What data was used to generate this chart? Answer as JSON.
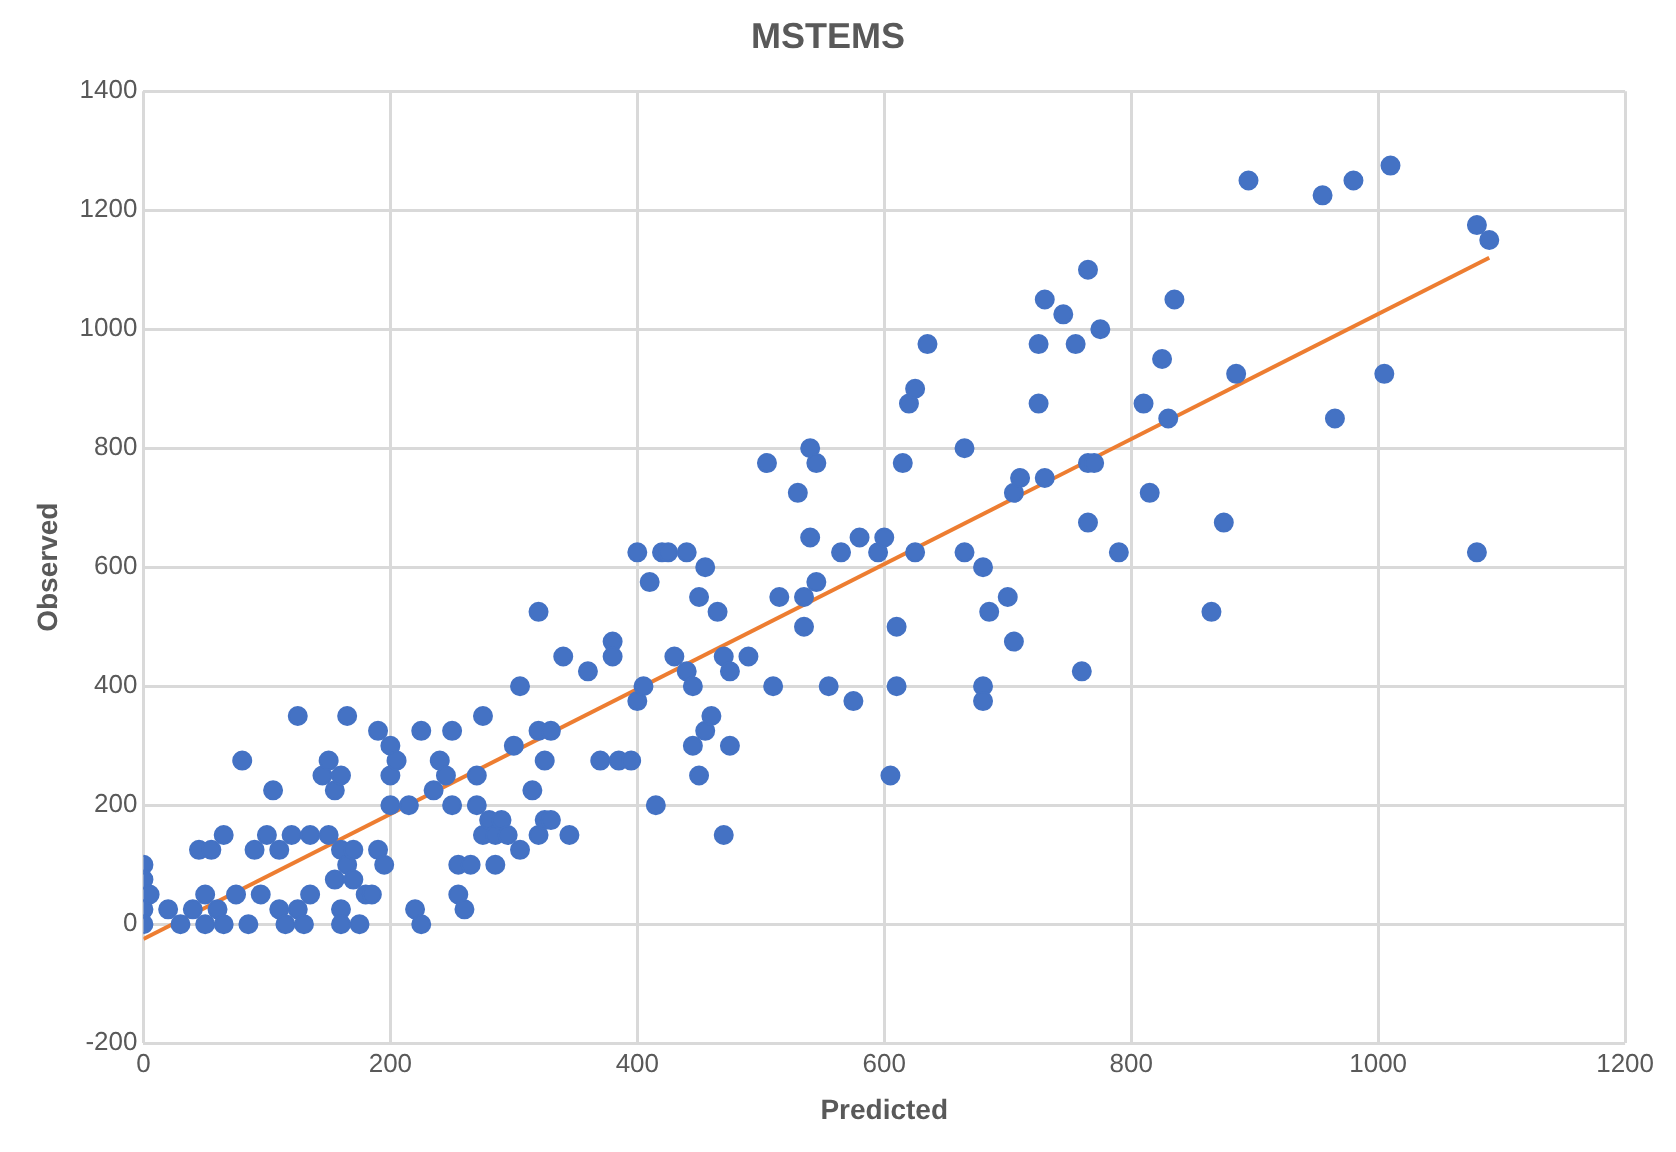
{
  "chart_data": {
    "type": "scatter",
    "title": "MSTEMS",
    "xlabel": "Predicted",
    "ylabel": "Observed",
    "xlim": [
      0,
      1200
    ],
    "xticks": [
      0,
      200,
      400,
      600,
      800,
      1000,
      1200
    ],
    "ylim": [
      -200,
      1400
    ],
    "yticks": [
      -200,
      0,
      200,
      400,
      600,
      800,
      1000,
      1200,
      1400
    ],
    "grid": true,
    "legend": false,
    "marker": "circle",
    "series": [
      {
        "color": "#4472c4",
        "x": [
          0,
          0,
          0,
          0,
          5,
          20,
          30,
          40,
          45,
          50,
          50,
          55,
          60,
          65,
          65,
          75,
          80,
          85,
          90,
          95,
          100,
          105,
          110,
          110,
          115,
          120,
          125,
          125,
          130,
          135,
          135,
          145,
          150,
          150,
          155,
          155,
          160,
          160,
          160,
          160,
          165,
          165,
          170,
          170,
          175,
          180,
          185,
          190,
          190,
          195,
          200,
          200,
          200,
          205,
          215,
          220,
          225,
          225,
          235,
          240,
          245,
          250,
          250,
          255,
          255,
          260,
          265,
          270,
          270,
          275,
          275,
          280,
          285,
          285,
          290,
          295,
          300,
          305,
          305,
          315,
          320,
          320,
          320,
          325,
          325,
          330,
          330,
          340,
          345,
          360,
          370,
          380,
          380,
          385,
          395,
          400,
          400,
          405,
          410,
          415,
          420,
          425,
          430,
          440,
          440,
          445,
          445,
          450,
          450,
          455,
          455,
          460,
          465,
          470,
          470,
          475,
          475,
          490,
          505,
          510,
          515,
          530,
          535,
          535,
          540,
          540,
          545,
          545,
          555,
          565,
          575,
          580,
          595,
          600,
          605,
          610,
          610,
          615,
          620,
          625,
          625,
          635,
          665,
          665,
          680,
          680,
          680,
          685,
          700,
          705,
          705,
          710,
          725,
          725,
          730,
          730,
          745,
          755,
          760,
          765,
          765,
          765,
          770,
          775,
          790,
          810,
          815,
          825,
          830,
          835,
          865,
          875,
          885,
          895,
          955,
          965,
          980,
          1005,
          1010,
          1080,
          1080,
          1090
        ],
        "values": [
          100,
          75,
          25,
          0,
          50,
          25,
          0,
          25,
          125,
          0,
          50,
          125,
          25,
          0,
          150,
          50,
          275,
          0,
          125,
          50,
          150,
          225,
          125,
          25,
          0,
          150,
          350,
          25,
          0,
          150,
          50,
          250,
          275,
          150,
          225,
          75,
          250,
          125,
          25,
          0,
          350,
          100,
          75,
          125,
          0,
          50,
          50,
          325,
          125,
          100,
          300,
          250,
          200,
          275,
          200,
          25,
          325,
          0,
          225,
          275,
          250,
          325,
          200,
          50,
          100,
          25,
          100,
          250,
          200,
          150,
          350,
          175,
          150,
          100,
          175,
          150,
          300,
          400,
          125,
          225,
          325,
          525,
          150,
          175,
          275,
          325,
          175,
          450,
          150,
          425,
          275,
          475,
          450,
          275,
          275,
          375,
          625,
          400,
          575,
          200,
          625,
          625,
          450,
          625,
          425,
          300,
          400,
          250,
          550,
          600,
          325,
          350,
          525,
          150,
          450,
          425,
          300,
          450,
          775,
          400,
          550,
          725,
          500,
          550,
          800,
          650,
          775,
          575,
          400,
          625,
          375,
          650,
          625,
          650,
          250,
          400,
          500,
          775,
          875,
          900,
          625,
          975,
          800,
          625,
          600,
          400,
          375,
          525,
          550,
          475,
          725,
          750,
          975,
          875,
          1050,
          750,
          1025,
          975,
          425,
          1100,
          775,
          675,
          775,
          1000,
          625,
          875,
          725,
          950,
          850,
          1050,
          525,
          675,
          925,
          1250,
          1225,
          850,
          1250,
          925,
          1275,
          1175,
          625,
          1150
        ]
      },
      {
        "type": "line",
        "color": "#ed7d31",
        "x": [
          0,
          1090
        ],
        "values": [
          -25,
          1120
        ],
        "marker": "none"
      }
    ]
  }
}
